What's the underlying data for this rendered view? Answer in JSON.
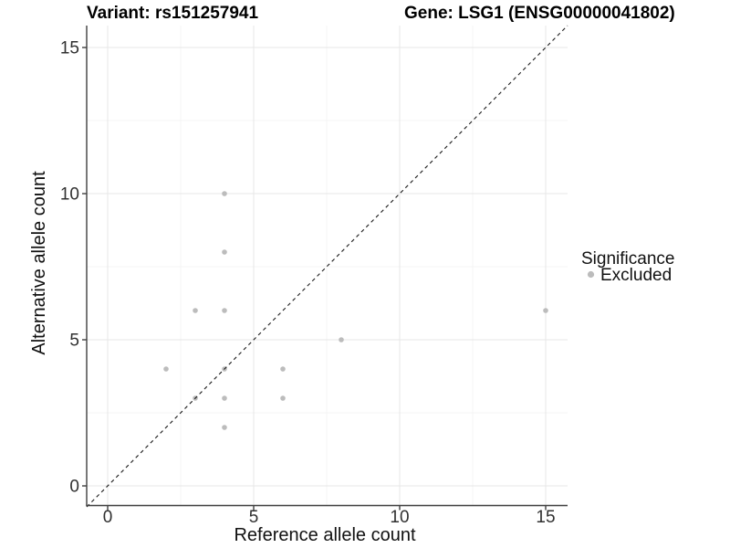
{
  "titles": {
    "variant": "Variant: rs151257941",
    "gene": "Gene: LSG1 (ENSG00000041802)"
  },
  "legend": {
    "title": "Significance",
    "items": [
      {
        "label": "Excluded",
        "color": "#bcbcbc"
      }
    ]
  },
  "colors": {
    "point": "#bcbcbc",
    "major_grid": "#e7e7e7",
    "minor_grid": "#f4f4f4",
    "axis_line": "#3f3f3f",
    "reference_line": "#1a1a1a",
    "background": "#ffffff"
  },
  "chart_data": {
    "type": "scatter",
    "title": "Variant: rs151257941   Gene: LSG1 (ENSG00000041802)",
    "xlabel": "Reference allele count",
    "ylabel": "Alternative allele count",
    "xlim": [
      -0.75,
      15.75
    ],
    "ylim": [
      -0.75,
      15.75
    ],
    "x_major_ticks": [
      0,
      5,
      10,
      15
    ],
    "x_minor_ticks": [
      2.5,
      7.5,
      12.5
    ],
    "y_major_ticks": [
      0,
      5,
      10,
      15
    ],
    "y_minor_ticks": [
      2.5,
      7.5,
      12.5
    ],
    "grid": "major+minor",
    "legend_position": "right",
    "reference_line": {
      "type": "identity y=x",
      "style": "dashed",
      "color": "#1a1a1a"
    },
    "series": [
      {
        "name": "Excluded",
        "color": "#bcbcbc",
        "points": [
          [
            2,
            4
          ],
          [
            3,
            3
          ],
          [
            3,
            6
          ],
          [
            4,
            2
          ],
          [
            4,
            3
          ],
          [
            4,
            4
          ],
          [
            4,
            6
          ],
          [
            4,
            8
          ],
          [
            4,
            10
          ],
          [
            6,
            3
          ],
          [
            6,
            4
          ],
          [
            8,
            5
          ],
          [
            15,
            6
          ]
        ]
      }
    ]
  }
}
